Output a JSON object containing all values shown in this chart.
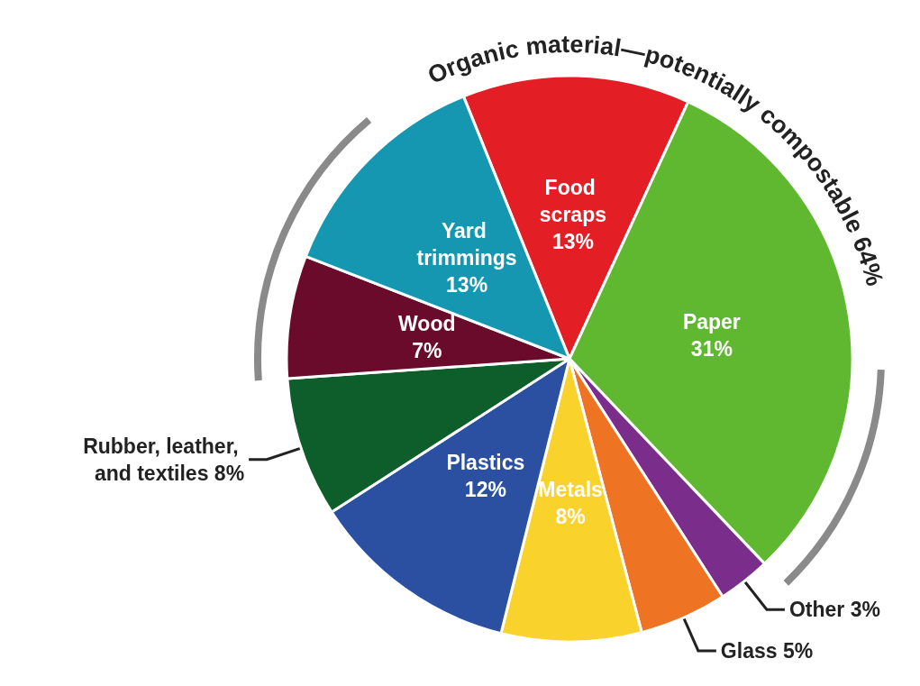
{
  "chart_data": {
    "type": "pie",
    "categories": [
      "Food scraps",
      "Paper",
      "Other",
      "Glass",
      "Metals",
      "Plastics",
      "Rubber, leather, and textiles",
      "Wood",
      "Yard trimmings"
    ],
    "values": [
      13,
      31,
      3,
      5,
      8,
      12,
      8,
      7,
      13
    ],
    "value_labels": [
      "13%",
      "31%",
      "3%",
      "5%",
      "8%",
      "12%",
      "8%",
      "7%",
      "13%"
    ],
    "colors": [
      "#e31e24",
      "#5fb830",
      "#7b2d8c",
      "#ee7423",
      "#fad22c",
      "#2b50a1",
      "#0e5e2b",
      "#6a0b2b",
      "#1697b1"
    ],
    "annotations": [
      "Organic material—potentially compostable 64%"
    ],
    "legend": false
  }
}
